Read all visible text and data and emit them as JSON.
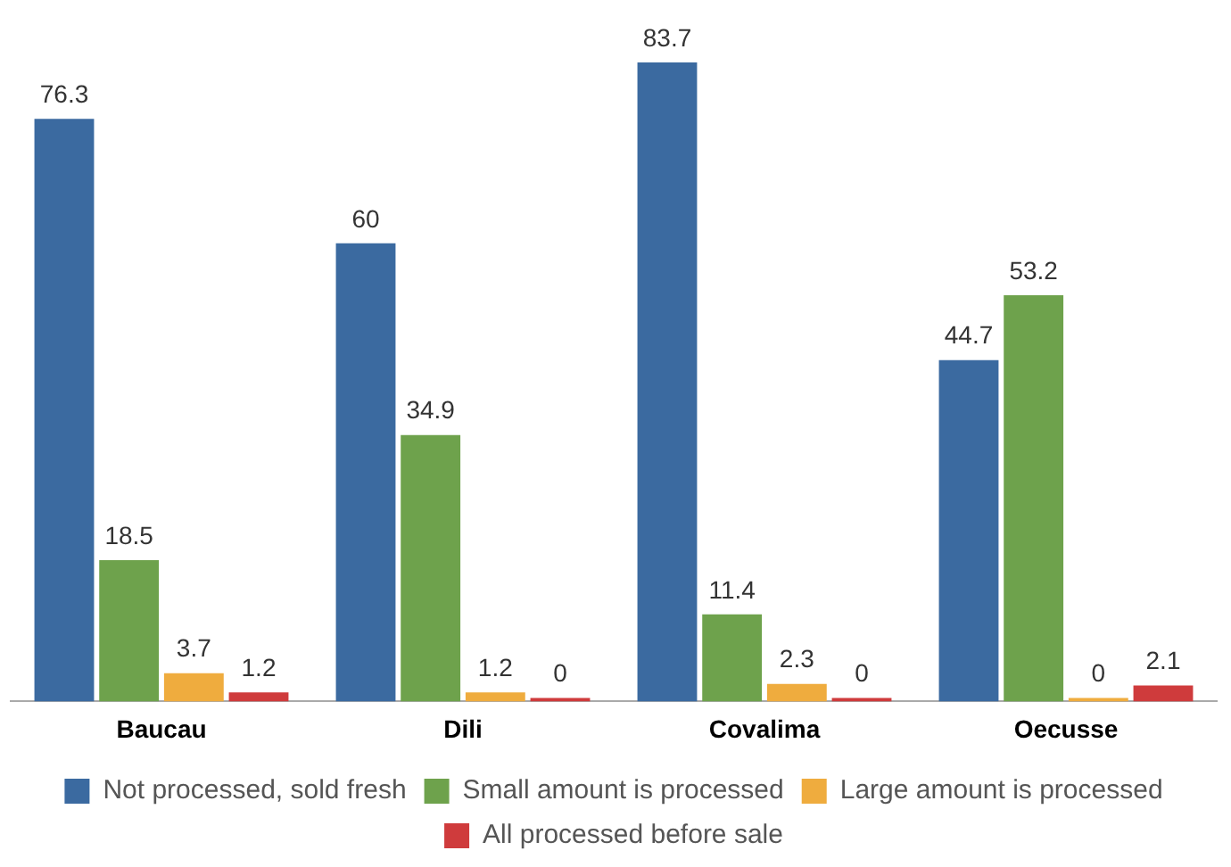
{
  "chart_data": {
    "type": "bar",
    "categories": [
      "Baucau",
      "Dili",
      "Covalima",
      "Oecusse"
    ],
    "series": [
      {
        "name": "Not processed, sold fresh",
        "color": "#3b6aa0",
        "values": [
          76.3,
          60,
          83.7,
          44.7
        ]
      },
      {
        "name": "Small amount is processed",
        "color": "#6ea24c",
        "values": [
          18.5,
          34.9,
          11.4,
          53.2
        ]
      },
      {
        "name": "Large amount is processed",
        "color": "#efac3e",
        "values": [
          3.7,
          1.2,
          2.3,
          0
        ]
      },
      {
        "name": "All processed before sale",
        "color": "#cf3b3c",
        "values": [
          1.2,
          0,
          0,
          2.1
        ]
      }
    ],
    "data_labels": true,
    "grid": false,
    "legend": "bottom"
  }
}
